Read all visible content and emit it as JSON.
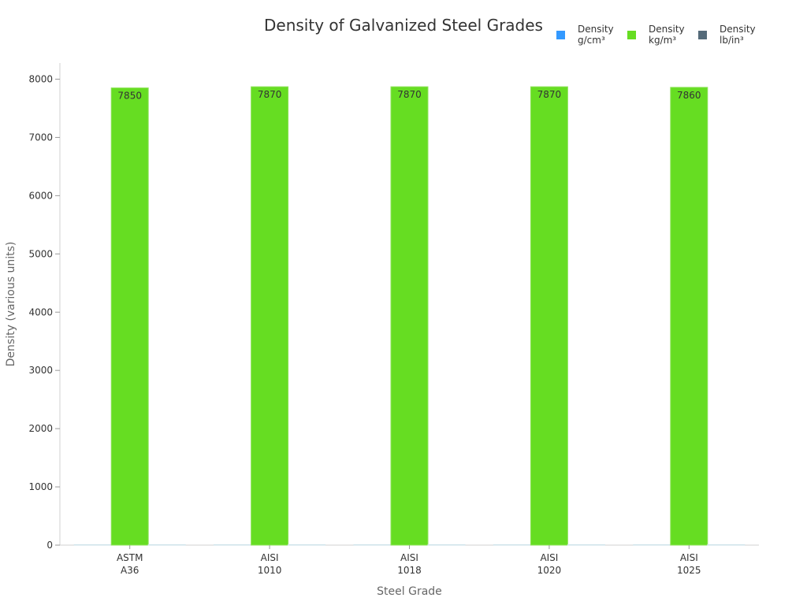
{
  "chart_data": {
    "type": "bar",
    "title": "Density of Galvanized Steel Grades",
    "xlabel": "Steel Grade",
    "ylabel": "Density (various units)",
    "categories": [
      [
        "ASTM",
        "A36"
      ],
      [
        "AISI",
        "1010"
      ],
      [
        "AISI",
        "1018"
      ],
      [
        "AISI",
        "1020"
      ],
      [
        "AISI",
        "1025"
      ]
    ],
    "series": [
      {
        "name": [
          "Density",
          "g/cm³"
        ],
        "color": "#3399ff",
        "values": [
          7.85,
          7.87,
          7.87,
          7.87,
          7.86
        ],
        "labels": false
      },
      {
        "name": [
          "Density",
          "kg/m³"
        ],
        "color": "#66dd22",
        "values": [
          7850,
          7870,
          7870,
          7870,
          7860
        ],
        "labels": true
      },
      {
        "name": [
          "Density",
          "lb/in³"
        ],
        "color": "#556b7a",
        "values": [
          0.284,
          0.284,
          0.284,
          0.284,
          0.284
        ],
        "labels": false
      }
    ],
    "yticks": [
      0,
      1000,
      2000,
      3000,
      4000,
      5000,
      6000,
      7000,
      8000
    ],
    "ylim": [
      0,
      8000
    ],
    "legend_position": "top-right",
    "grid": false
  }
}
